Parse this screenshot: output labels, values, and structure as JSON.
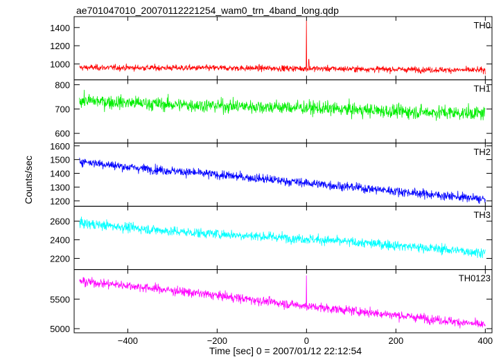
{
  "title": "ae701047010_20070112221254_wam0_trn_4band_long.qdp",
  "chart_data": {
    "type": "line",
    "title": "ae701047010_20070112221254_wam0_trn_4band_long.qdp",
    "xlabel": "Time [sec] 0 = 2007/01/12 22:12:54",
    "ylabel": "Counts/sec",
    "xlim": [
      -520,
      415
    ],
    "x_ticks": [
      -400,
      -200,
      0,
      200,
      400
    ],
    "x_tick_labels": [
      "−400",
      "−200",
      "0",
      "200",
      "400"
    ],
    "x_range": [
      -508,
      400
    ],
    "panels": [
      {
        "name": "TH0",
        "color": "#ff0000",
        "ylim": [
          825,
          1520
        ],
        "y_ticks": [
          1000,
          1200,
          1400
        ],
        "trend": [
          [
            -508,
            960
          ],
          [
            -200,
            955
          ],
          [
            0,
            950
          ],
          [
            200,
            940
          ],
          [
            400,
            930
          ]
        ],
        "noise": 28,
        "spikes": [
          {
            "x": 0,
            "y": 1480
          },
          {
            "x": 5,
            "y": 1050
          }
        ]
      },
      {
        "name": "TH1",
        "color": "#00ee00",
        "ylim": [
          560,
          820
        ],
        "y_ticks": [
          600,
          700,
          800
        ],
        "trend": [
          [
            -508,
            735
          ],
          [
            -300,
            718
          ],
          [
            0,
            705
          ],
          [
            200,
            690
          ],
          [
            400,
            682
          ]
        ],
        "noise": 24,
        "spikes": []
      },
      {
        "name": "TH2",
        "color": "#0000ff",
        "ylim": [
          1160,
          1620
        ],
        "y_ticks": [
          1200,
          1300,
          1400,
          1500,
          1600
        ],
        "trend": [
          [
            -508,
            1490
          ],
          [
            -400,
            1445
          ],
          [
            -200,
            1390
          ],
          [
            0,
            1330
          ],
          [
            200,
            1270
          ],
          [
            400,
            1210
          ]
        ],
        "noise": 28,
        "spikes": []
      },
      {
        "name": "TH3",
        "color": "#00ffff",
        "ylim": [
          2080,
          2760
        ],
        "y_ticks": [
          2200,
          2400,
          2600
        ],
        "trend": [
          [
            -508,
            2580
          ],
          [
            -300,
            2490
          ],
          [
            0,
            2410
          ],
          [
            200,
            2340
          ],
          [
            400,
            2260
          ]
        ],
        "noise": 45,
        "spikes": []
      },
      {
        "name": "TH0123",
        "color": "#ff00ff",
        "ylim": [
          4930,
          6000
        ],
        "y_ticks": [
          5000,
          5500
        ],
        "trend": [
          [
            -508,
            5800
          ],
          [
            -400,
            5730
          ],
          [
            -200,
            5560
          ],
          [
            0,
            5380
          ],
          [
            200,
            5230
          ],
          [
            400,
            5060
          ]
        ],
        "noise": 65,
        "spikes": [
          {
            "x": 0,
            "y": 5900
          }
        ]
      }
    ]
  }
}
